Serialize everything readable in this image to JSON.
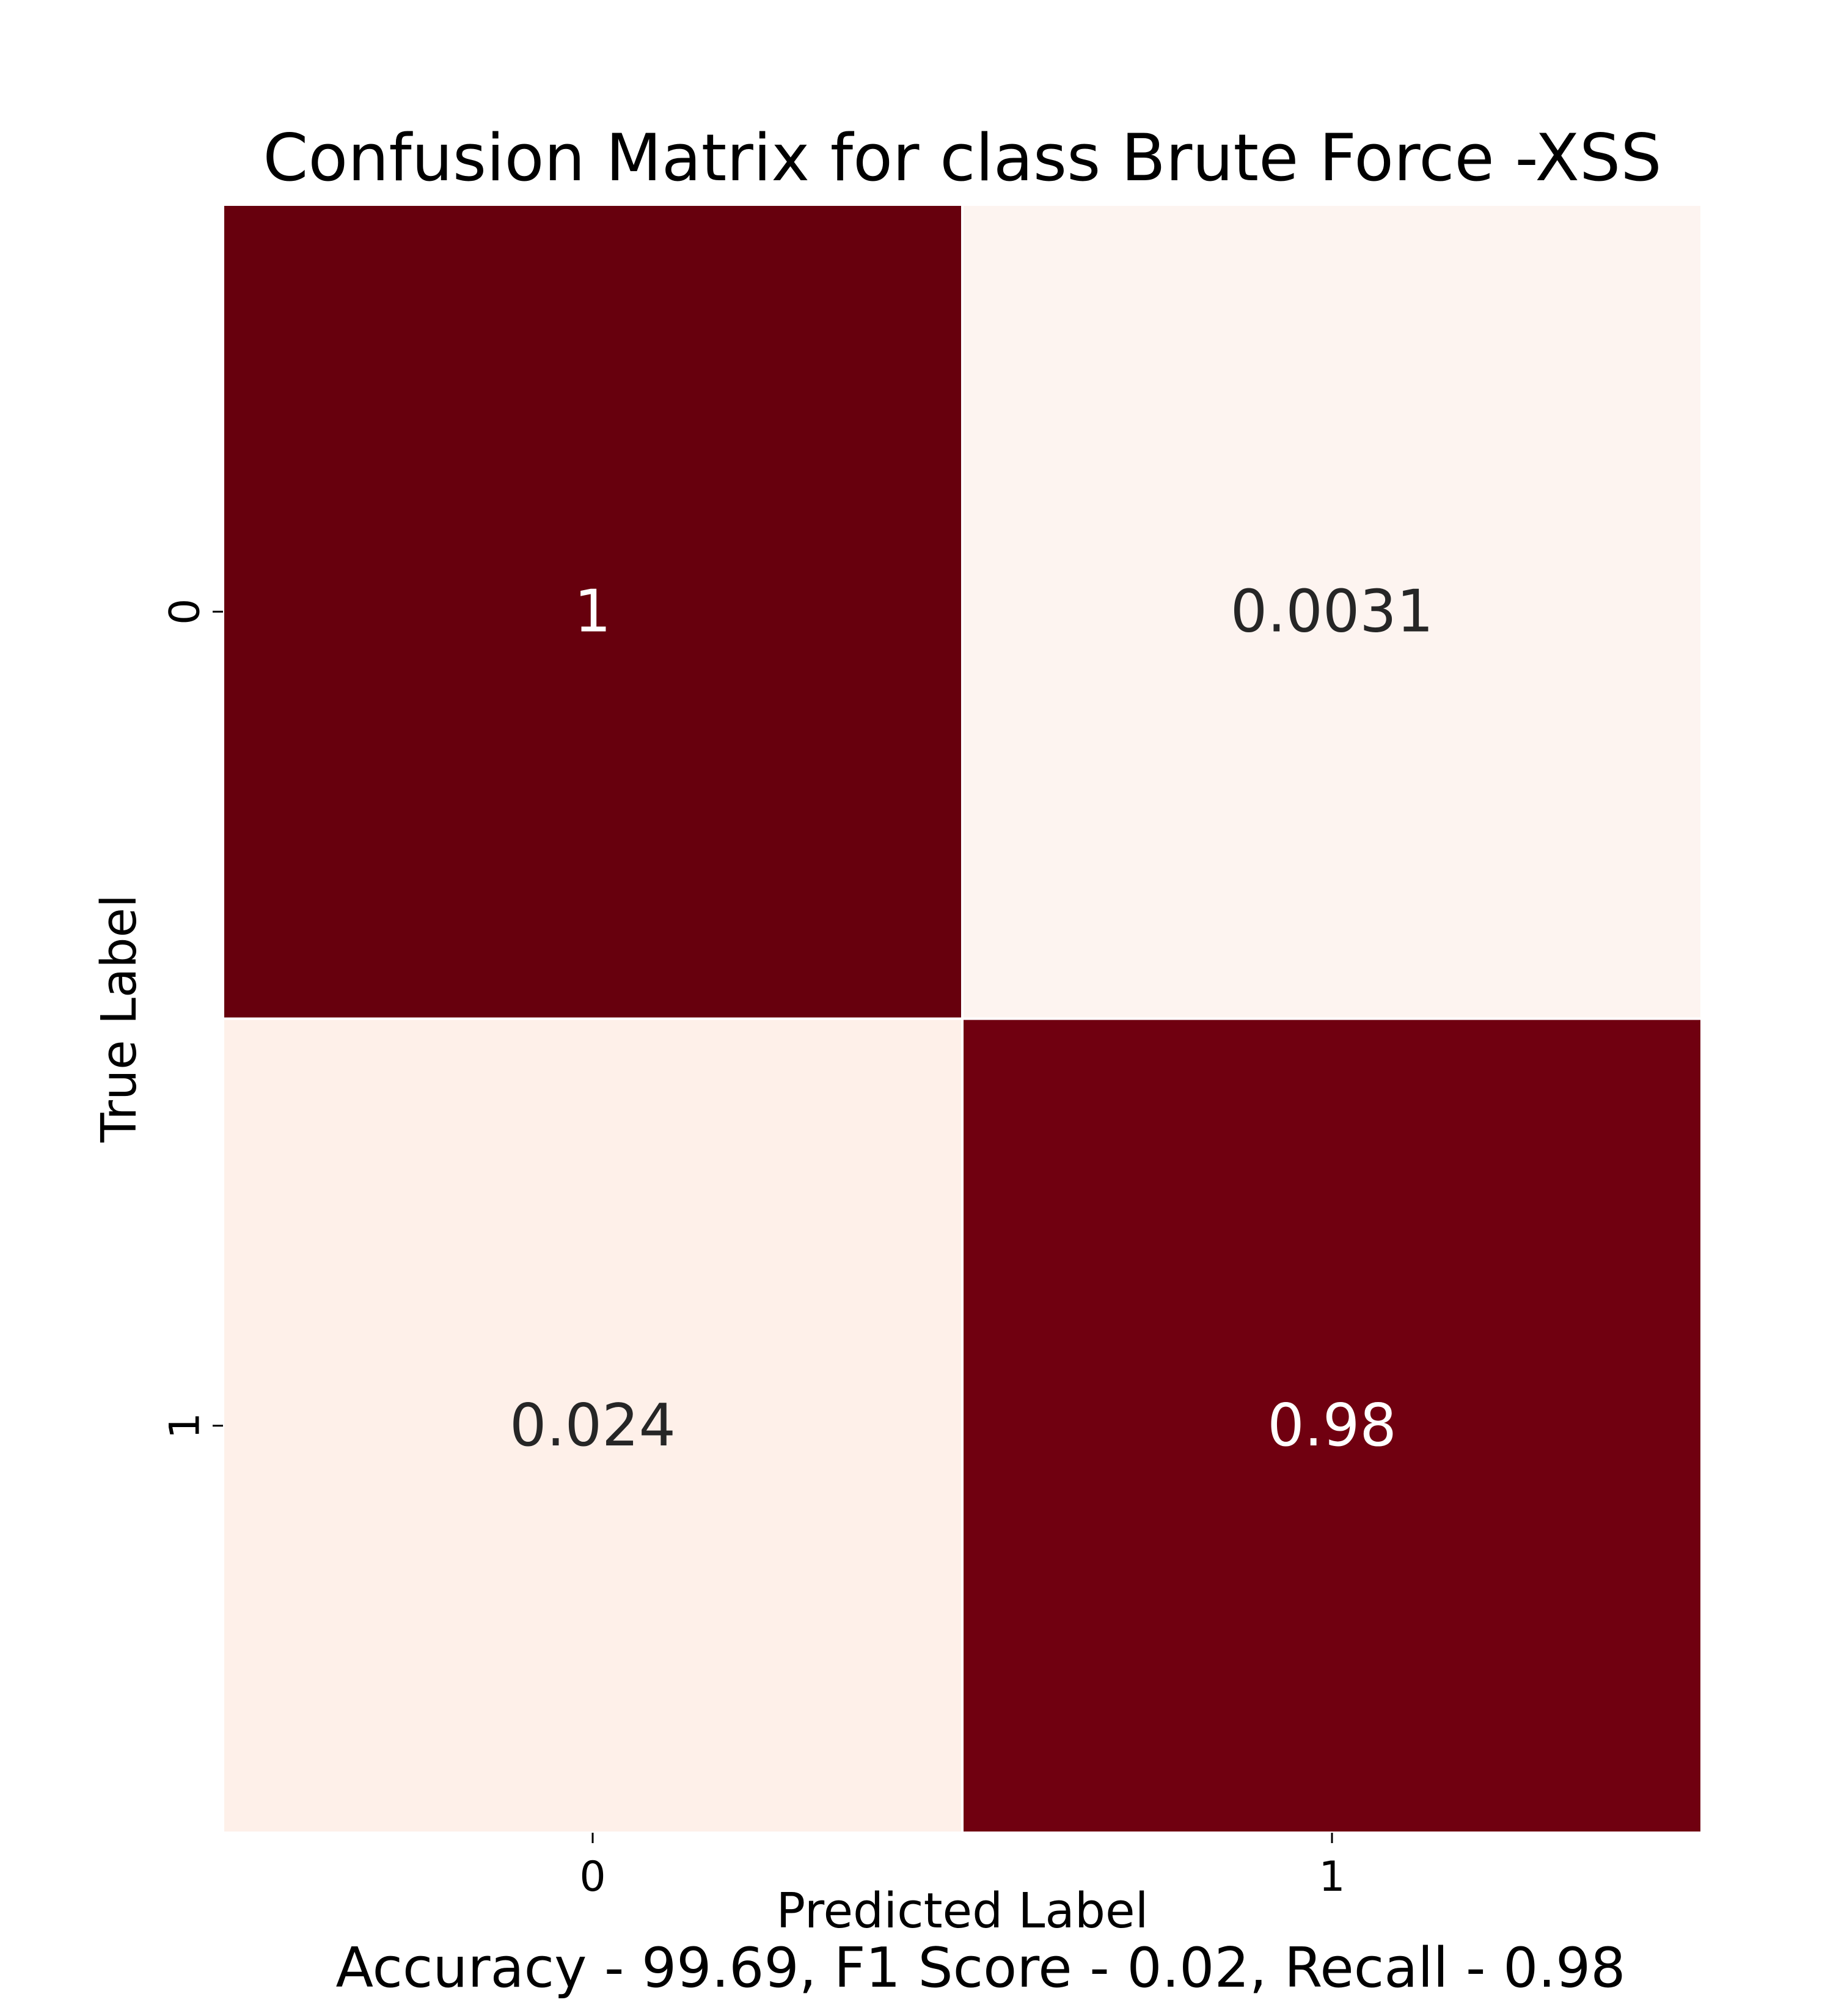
{
  "chart_data": {
    "type": "heatmap",
    "title": "Confusion Matrix for class Brute Force -XSS",
    "xlabel": "Predicted Label",
    "ylabel": "True Label",
    "x_categories": [
      "0",
      "1"
    ],
    "y_categories": [
      "0",
      "1"
    ],
    "cells": [
      {
        "row": 0,
        "col": 0,
        "value": 1,
        "label": "1",
        "color": "#67000d",
        "text_color": "#ffffff"
      },
      {
        "row": 0,
        "col": 1,
        "value": 0.0031,
        "label": "0.0031",
        "color": "#fdf4f0",
        "text_color": "#262626"
      },
      {
        "row": 1,
        "col": 0,
        "value": 0.024,
        "label": "0.024",
        "color": "#fef0e9",
        "text_color": "#262626"
      },
      {
        "row": 1,
        "col": 1,
        "value": 0.98,
        "label": "0.98",
        "color": "#700010",
        "text_color": "#ffffff"
      }
    ],
    "colormap": "Reds",
    "colorbar": false,
    "grid": false,
    "footer": "Accuracy - 99.69, F1 Score - 0.02, Recall - 0.98"
  }
}
